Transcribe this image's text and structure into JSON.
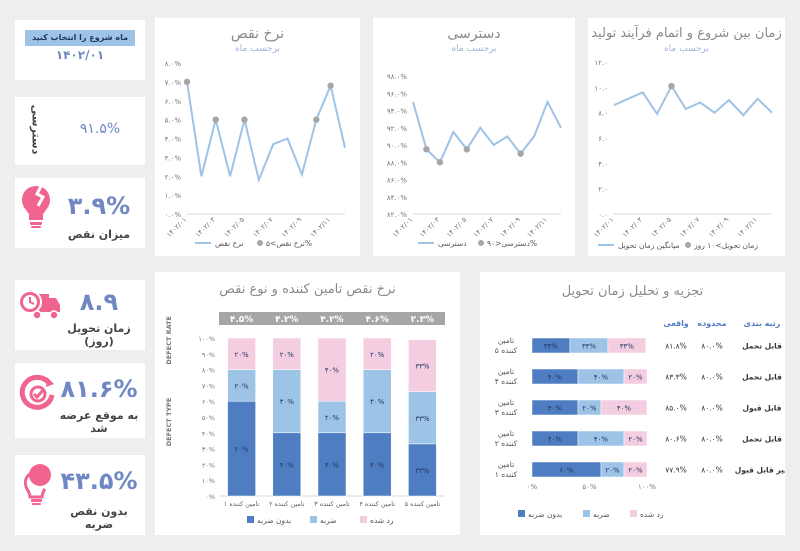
{
  "month_filter": {
    "label": "ماه شروع را انتخاب کنید",
    "value": "۱۴۰۲/۰۱"
  },
  "availability_kpi": {
    "label": "دسترسی",
    "value": "۹۱.۵%"
  },
  "kpi_cards": [
    {
      "icon": "broken-bulb-icon",
      "value": "۳.۹%",
      "label": "میزان نقص"
    },
    {
      "icon": "delivery-truck-icon",
      "value": "۸.۹",
      "label": "زمان تحویل (روز)"
    },
    {
      "icon": "target-arrow-icon",
      "value": "۸۱.۶%",
      "label": "به موقع عرضه شد"
    },
    {
      "icon": "bulb-icon",
      "value": "۴۳.۵%",
      "label": "بدون نقص ضربه"
    }
  ],
  "chart_data": [
    {
      "type": "line",
      "title": "نرخ نقص",
      "subtitle": "برحسب ماه",
      "x": [
        "۱۴۰۲/۰۱",
        "۱۴۰۲/۰۲",
        "۱۴۰۲/۰۳",
        "۱۴۰۲/۰۴",
        "۱۴۰۲/۰۵",
        "۱۴۰۲/۰۶",
        "۱۴۰۲/۰۷",
        "۱۴۰۲/۰۸",
        "۱۴۰۲/۰۹",
        "۱۴۰۲/۱۰",
        "۱۴۰۲/۱۱",
        "۱۴۰۲/۱۲"
      ],
      "x_tick_labels": [
        "۱۴۰۲/۰۱",
        "۱۴۰۲/۰۳",
        "۱۴۰۲/۰۵",
        "۱۴۰۲/۰۷",
        "۱۴۰۲/۰۹",
        "۱۴۰۲/۱۱"
      ],
      "series": [
        {
          "name": "نرخ نقص",
          "values": [
            7.0,
            2.0,
            5.0,
            2.0,
            5.0,
            1.8,
            3.7,
            4.0,
            2.1,
            5.0,
            6.8,
            3.5
          ]
        },
        {
          "name": "نرخ نقص>۵%",
          "marker_only": true,
          "values": [
            7.0,
            null,
            5.0,
            null,
            5.0,
            null,
            null,
            null,
            null,
            5.0,
            6.8,
            null
          ]
        }
      ],
      "ylim": [
        0,
        8
      ],
      "y_tick_labels": [
        "۰.۰%",
        "۱.۰%",
        "۲.۰%",
        "۳.۰%",
        "۴.۰%",
        "۵.۰%",
        "۶.۰%",
        "۷.۰%",
        "۸.۰%"
      ]
    },
    {
      "type": "line",
      "title": "دسترسی",
      "subtitle": "برحسب ماه",
      "x": [
        "۱۴۰۲/۰۱",
        "۱۴۰۲/۰۲",
        "۱۴۰۲/۰۳",
        "۱۴۰۲/۰۴",
        "۱۴۰۲/۰۵",
        "۱۴۰۲/۰۶",
        "۱۴۰۲/۰۷",
        "۱۴۰۲/۰۸",
        "۱۴۰۲/۰۹",
        "۱۴۰۲/۱۰",
        "۱۴۰۲/۱۱",
        "۱۴۰۲/۱۲"
      ],
      "x_tick_labels": [
        "۱۴۰۲/۰۱",
        "۱۴۰۲/۰۳",
        "۱۴۰۲/۰۵",
        "۱۴۰۲/۰۷",
        "۱۴۰۲/۰۹",
        "۱۴۰۲/۱۱"
      ],
      "series": [
        {
          "name": "دسترسی",
          "values": [
            95.0,
            89.5,
            88.0,
            91.5,
            89.5,
            92.0,
            90.0,
            91.0,
            89.0,
            91.0,
            95.0,
            92.0
          ]
        },
        {
          "name": "دسترسی<۹۰%",
          "marker_only": true,
          "values": [
            null,
            89.5,
            88.0,
            null,
            89.5,
            null,
            null,
            null,
            89.0,
            null,
            null,
            null
          ]
        }
      ],
      "ylim": [
        82,
        98
      ],
      "y_tick_labels": [
        "۸۲.۰%",
        "۸۴.۰%",
        "۸۶.۰%",
        "۸۸.۰%",
        "۹۰.۰%",
        "۹۲.۰%",
        "۹۴.۰%",
        "۹۶.۰%",
        "۹۸.۰%"
      ]
    },
    {
      "type": "line",
      "title": "زمان بین شروع و اتمام فرآیند تولید",
      "subtitle": "برحسب ماه",
      "x": [
        "۱۴۰۲/۰۱",
        "۱۴۰۲/۰۲",
        "۱۴۰۲/۰۳",
        "۱۴۰۲/۰۴",
        "۱۴۰۲/۰۵",
        "۱۴۰۲/۰۶",
        "۱۴۰۲/۰۷",
        "۱۴۰۲/۰۸",
        "۱۴۰۲/۰۹",
        "۱۴۰۲/۱۰",
        "۱۴۰۲/۱۱",
        "۱۴۰۲/۱۲"
      ],
      "x_tick_labels": [
        "۱۴۰۲/۰۱",
        "۱۴۰۲/۰۳",
        "۱۴۰۲/۰۵",
        "۱۴۰۲/۰۷",
        "۱۴۰۲/۰۹",
        "۱۴۰۲/۱۱"
      ],
      "series": [
        {
          "name": "میانگین زمان تحویل",
          "values": [
            8.6,
            9.1,
            9.6,
            7.9,
            10.1,
            8.3,
            8.8,
            8.0,
            9.0,
            7.8,
            9.1,
            8.0
          ]
        },
        {
          "name": "زمان تحویل>۱۰ روز",
          "marker_only": true,
          "values": [
            null,
            null,
            null,
            null,
            10.1,
            null,
            null,
            null,
            null,
            null,
            null,
            null
          ]
        }
      ],
      "ylim": [
        0,
        12
      ],
      "y_tick_labels": [
        "۰.۰",
        "۲.۰",
        "۴.۰",
        "۶.۰",
        "۸.۰",
        "۱۰.۰",
        "۱۲.۰"
      ]
    },
    {
      "type": "bar",
      "stacked": true,
      "title": "نرخ نقص تامین کننده و نوع نقص",
      "categories": [
        "تامین کننده ۱",
        "تامین کننده ۲",
        "تامین کننده ۳",
        "تامین کننده ۴",
        "تامین کننده ۵"
      ],
      "defect_rate_header": "DEFECT RATE",
      "defect_type_label": "DEFECT TYPE",
      "defect_rates": [
        "۴.۵%",
        "۴.۲%",
        "۴.۲%",
        "۴.۶%",
        "۲.۳%"
      ],
      "series": [
        {
          "name": "بدون ضربه",
          "values": [
            60,
            40,
            40,
            40,
            33
          ],
          "labels": [
            "۶۰%",
            "۴۰%",
            "۴۰%",
            "۴۰%",
            "۳۳%"
          ]
        },
        {
          "name": "ضربه",
          "values": [
            20,
            40,
            20,
            40,
            33
          ],
          "labels": [
            "۲۰%",
            "۴۰%",
            "۲۰%",
            "۴۰%",
            "۳۳%"
          ]
        },
        {
          "name": "رد شده",
          "values": [
            20,
            20,
            40,
            20,
            33
          ],
          "labels": [
            "۲۰%",
            "۲۰%",
            "۴۰%",
            "۲۰%",
            "۳۳%"
          ]
        }
      ],
      "ylim": [
        0,
        100
      ],
      "y_tick_labels": [
        "۰%",
        "۱۰%",
        "۲۰%",
        "۳۰%",
        "۴۰%",
        "۵۰%",
        "۶۰%",
        "۷۰%",
        "۸۰%",
        "۹۰%",
        "۱۰۰%"
      ]
    },
    {
      "type": "bar",
      "stacked": true,
      "orientation": "horizontal",
      "title": "تجزیه و تحلیل زمان تحویل",
      "categories": [
        "تامین کننده ۵",
        "تامین کننده ۴",
        "تامین کننده ۳",
        "تامین کننده ۲",
        "تامین کننده ۱"
      ],
      "series": [
        {
          "name": "بدون ضربه",
          "values": [
            33,
            40,
            40,
            40,
            60
          ],
          "labels": [
            "۳۳%",
            "۴۰%",
            "۴۰%",
            "۴۰%",
            "۶۰%"
          ]
        },
        {
          "name": "ضربه",
          "values": [
            33,
            40,
            20,
            40,
            20
          ],
          "labels": [
            "۳۳%",
            "۴۰%",
            "۲۰%",
            "۴۰%",
            "۲۰%"
          ]
        },
        {
          "name": "رد شده",
          "values": [
            33,
            20,
            40,
            20,
            20
          ],
          "labels": [
            "۳۳%",
            "۲۰%",
            "۴۰%",
            "۲۰%",
            "۲۰%"
          ]
        }
      ],
      "xlim": [
        0,
        100
      ],
      "x_tick_labels": [
        "۰%",
        "۵۰%",
        "۱۰۰%"
      ],
      "table": {
        "headers": [
          "واقعی",
          "محدوده",
          "رتبه بندی"
        ],
        "rows": [
          [
            "۸۱.۸%",
            "۸۰.۰%",
            "قابل تحمل"
          ],
          [
            "۸۳.۳%",
            "۸۰.۰%",
            "قابل تحمل"
          ],
          [
            "۸۵.۰%",
            "۸۰.۰%",
            "قابل قبول"
          ],
          [
            "۸۰.۶%",
            "۸۰.۰%",
            "قابل تحمل"
          ],
          [
            "۷۷.۹%",
            "۸۰.۰%",
            "غیر قابل قبول"
          ]
        ]
      }
    }
  ],
  "colors": {
    "line": "#9dc3e6",
    "marker": "#a6a6a6",
    "dark_blue": "#4f7dc1",
    "light_blue": "#9dc3e6",
    "pink": "#f4cde0",
    "accent": "#6f88c4",
    "icon_pink": "#f0648f"
  }
}
